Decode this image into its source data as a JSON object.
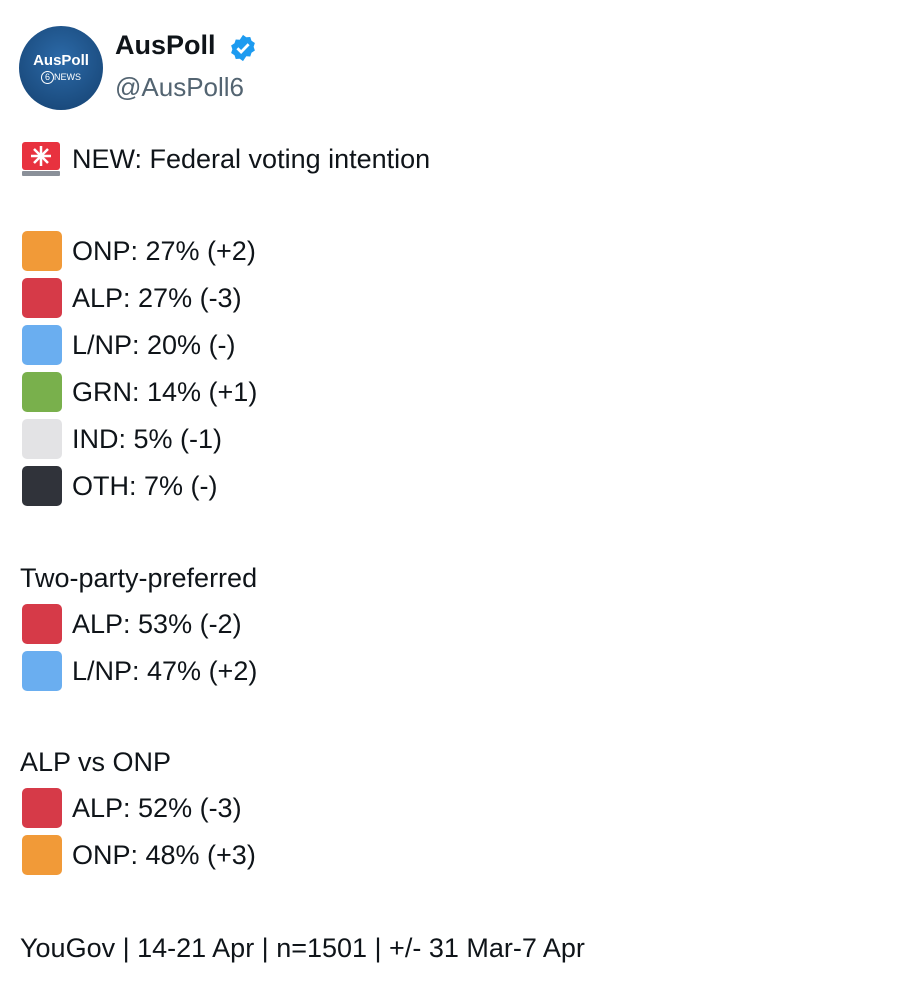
{
  "account": {
    "avatar_title": "AusPoll",
    "avatar_badge_number": "6",
    "avatar_badge_text": "NEWS",
    "name": "AusPoll",
    "handle": "@AusPoll6"
  },
  "headline": "NEW: Federal voting intention",
  "primary_vote": {
    "items": [
      {
        "label": "ONP: 27% (+2)",
        "color": "#f19a38"
      },
      {
        "label": "ALP: 27% (-3)",
        "color": "#d63a48"
      },
      {
        "label": "L/NP: 20% (-)",
        "color": "#6aaef0"
      },
      {
        "label": "GRN: 14% (+1)",
        "color": "#79b04c"
      },
      {
        "label": "IND: 5% (-1)",
        "color": "#e3e3e5"
      },
      {
        "label": "OTH: 7% (-)",
        "color": "#30333a"
      }
    ]
  },
  "two_party_preferred": {
    "title": "Two-party-preferred",
    "items": [
      {
        "label": "ALP: 53% (-2)",
        "color": "#d63a48"
      },
      {
        "label": "L/NP: 47% (+2)",
        "color": "#6aaef0"
      }
    ]
  },
  "alp_vs_onp": {
    "title": "ALP vs ONP",
    "items": [
      {
        "label": "ALP: 52% (-3)",
        "color": "#d63a48"
      },
      {
        "label": "ONP: 48% (+3)",
        "color": "#f19a38"
      }
    ]
  },
  "footer": "YouGov | 14-21 Apr | n=1501 | +/- 31 Mar-7 Apr"
}
